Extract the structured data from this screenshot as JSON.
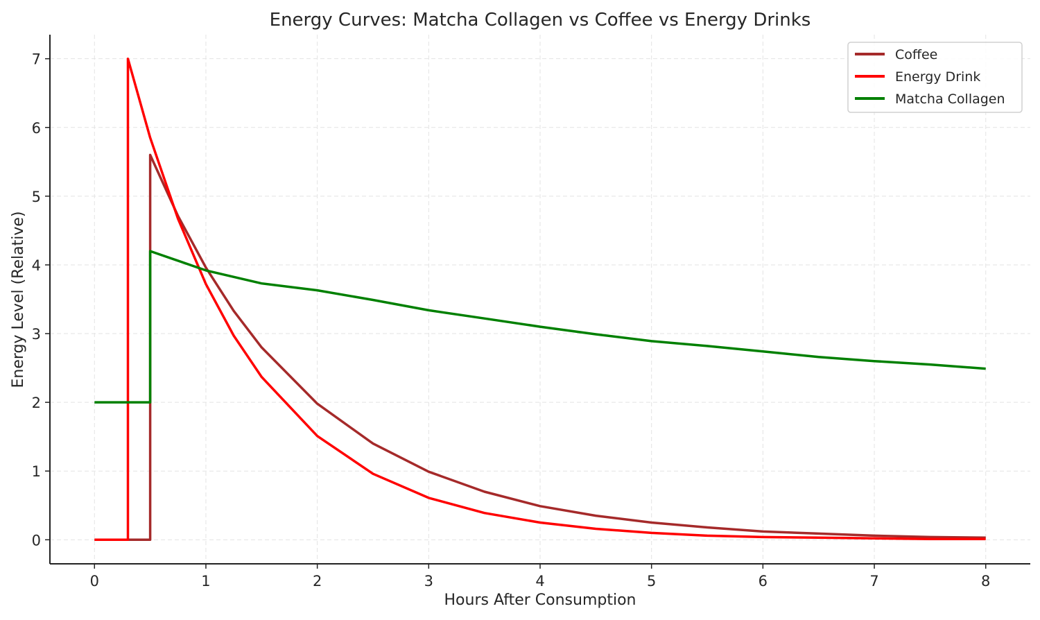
{
  "chart_data": {
    "type": "line",
    "title": "Energy Curves: Matcha Collagen vs Coffee vs Energy Drinks",
    "xlabel": "Hours After Consumption",
    "ylabel": "Energy Level (Relative)",
    "xlim": [
      -0.4,
      8.4
    ],
    "ylim": [
      -0.35,
      7.35
    ],
    "xticks": [
      0,
      1,
      2,
      3,
      4,
      5,
      6,
      7,
      8
    ],
    "yticks": [
      0,
      1,
      2,
      3,
      4,
      5,
      6,
      7
    ],
    "grid": true,
    "legend_position": "top-right",
    "series": [
      {
        "name": "Coffee",
        "color": "#a52a2a",
        "x": [
          0,
          0.5,
          0.5,
          0.75,
          1,
          1.25,
          1.5,
          2,
          2.5,
          3,
          3.5,
          4,
          4.5,
          5,
          5.5,
          6,
          6.5,
          7,
          7.5,
          8
        ],
        "y": [
          0,
          0,
          5.6,
          4.71,
          3.96,
          3.33,
          2.8,
          1.98,
          1.4,
          0.99,
          0.7,
          0.49,
          0.35,
          0.25,
          0.18,
          0.12,
          0.09,
          0.06,
          0.04,
          0.03
        ]
      },
      {
        "name": "Energy Drink",
        "color": "#ff0000",
        "x": [
          0,
          0.3,
          0.3,
          0.5,
          0.75,
          1,
          1.25,
          1.5,
          2,
          2.5,
          3,
          3.5,
          4,
          4.5,
          5,
          5.5,
          6,
          6.5,
          7,
          7.5,
          8
        ],
        "y": [
          0,
          0,
          7.0,
          5.85,
          4.67,
          3.72,
          2.97,
          2.37,
          1.51,
          0.96,
          0.61,
          0.39,
          0.25,
          0.16,
          0.1,
          0.06,
          0.04,
          0.03,
          0.02,
          0.01,
          0.01
        ]
      },
      {
        "name": "Matcha Collagen",
        "color": "#008000",
        "x": [
          0,
          0.5,
          0.5,
          1,
          1.5,
          2,
          2.5,
          3,
          3.5,
          4,
          4.5,
          5,
          5.5,
          6,
          6.5,
          7,
          7.5,
          8
        ],
        "y": [
          2,
          2,
          4.2,
          3.92,
          3.73,
          3.63,
          3.49,
          3.34,
          3.22,
          3.1,
          2.99,
          2.89,
          2.82,
          2.74,
          2.66,
          2.6,
          2.55,
          2.49
        ]
      }
    ]
  }
}
